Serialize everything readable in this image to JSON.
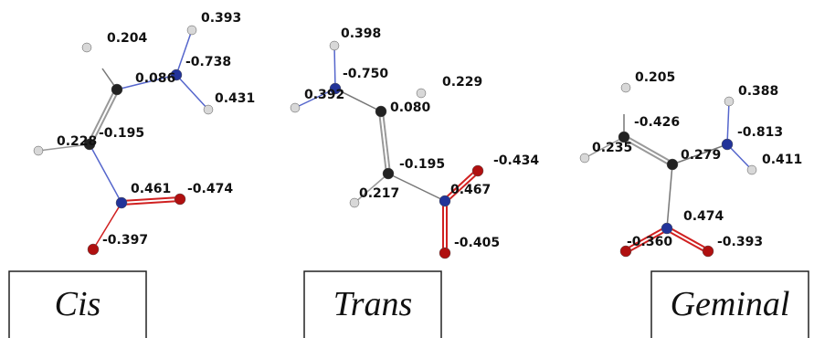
{
  "molecules": [
    {
      "name": "Cis",
      "charges": [
        "0.204",
        "0.393",
        "0.086",
        "-0.738",
        "0.431",
        "0.228",
        "-0.195",
        "0.461",
        "-0.474",
        "-0.397"
      ]
    },
    {
      "name": "Trans",
      "charges": [
        "0.398",
        "-0.750",
        "0.392",
        "0.229",
        "0.080",
        "-0.195",
        "-0.434",
        "0.217",
        "0.467",
        "-0.405"
      ]
    },
    {
      "name": "Geminal",
      "charges": [
        "0.205",
        "0.388",
        "-0.426",
        "-0.813",
        "0.235",
        "0.279",
        "0.411",
        "0.474",
        "-0.360",
        "-0.393"
      ]
    }
  ]
}
